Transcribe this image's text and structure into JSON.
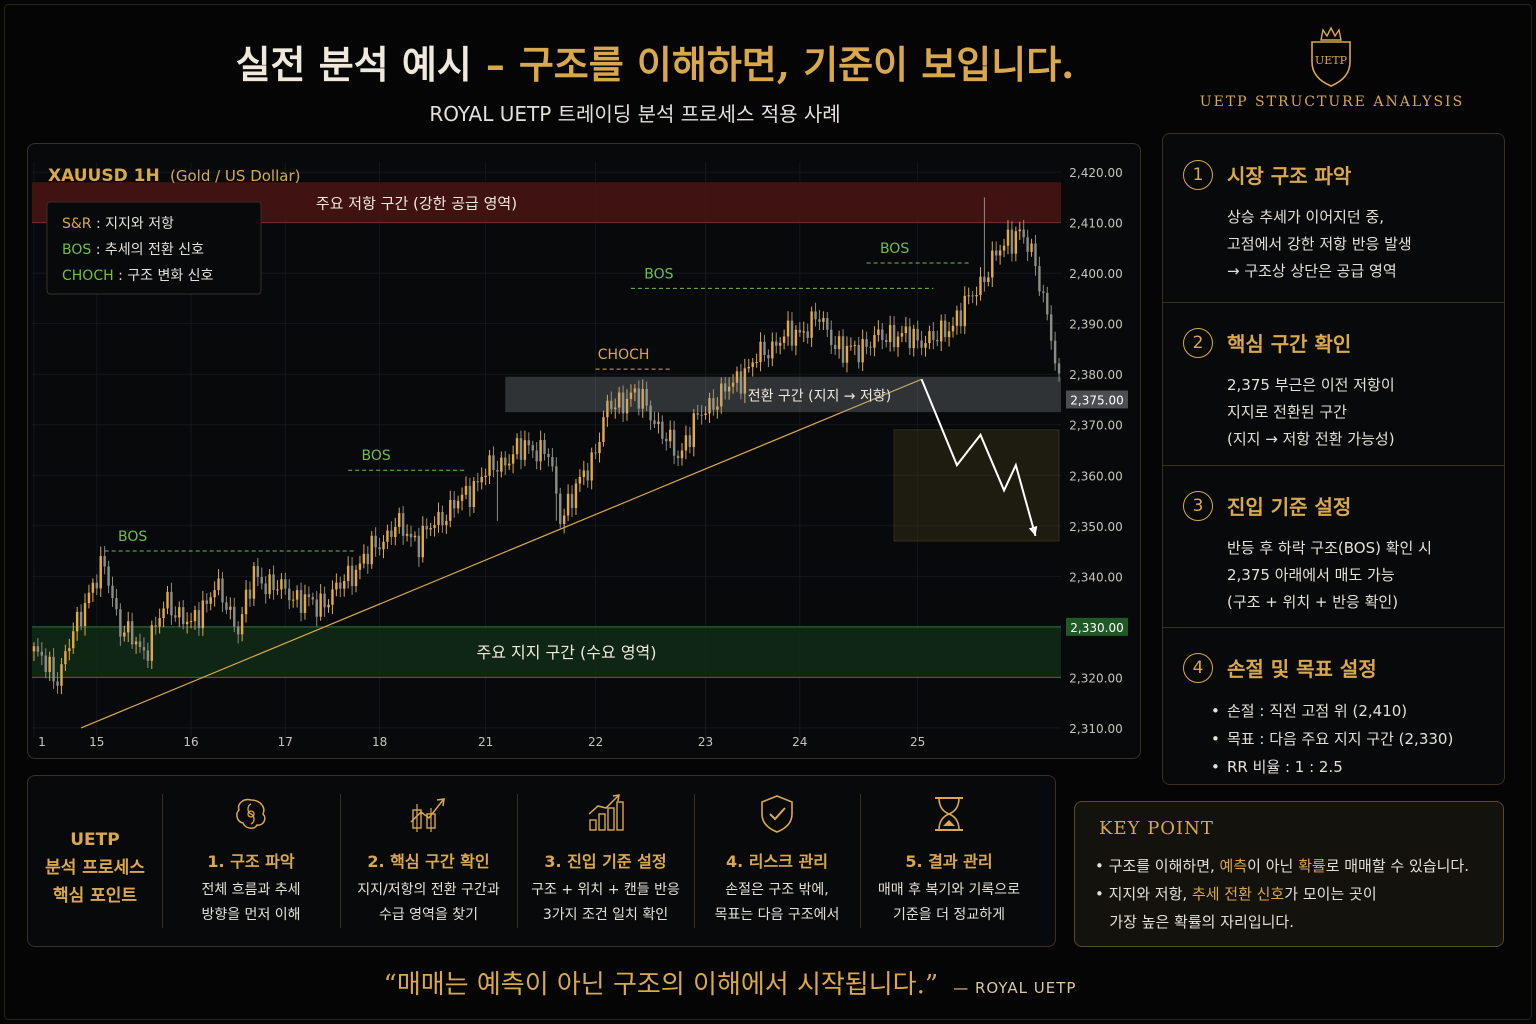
{
  "header": {
    "title_white": "실전 분석 예시",
    "title_dash": "–",
    "title_gold": "구조를 이해하면, 기준이 보입니다.",
    "subtitle": "ROYAL UETP 트레이딩 분석 프로세스 적용 사례",
    "logo_text": "UETP",
    "brand": "UETP STRUCTURE ANALYSIS"
  },
  "chart_data": {
    "type": "candlestick",
    "title": "XAUUSD 1H",
    "title_sub": "(Gold / US Dollar)",
    "legend": [
      {
        "key": "S&R",
        "desc": ": 지지와 저항"
      },
      {
        "key": "BOS",
        "desc": ": 추세의 전환 신호"
      },
      {
        "key": "CHOCH",
        "desc": ": 구조 변화 신호"
      }
    ],
    "ylim": [
      2308,
      2422
    ],
    "y_ticks": [
      "2,420.00",
      "2,410.00",
      "2,400.00",
      "2,390.00",
      "2,380.00",
      "2,370.00",
      "2,360.00",
      "2,350.00",
      "2,340.00",
      "2,330.00",
      "2,320.00",
      "2,310.00"
    ],
    "y_tick_values": [
      2420,
      2410,
      2400,
      2390,
      2380,
      2370,
      2360,
      2350,
      2340,
      2330,
      2320,
      2310
    ],
    "highlight_ticks": [
      {
        "label": "2,375.00",
        "value": 2375,
        "color": "#4a4d52"
      },
      {
        "label": "2,330.00",
        "value": 2330,
        "color": "#1f5a26"
      }
    ],
    "x_ticks": [
      "1",
      "15",
      "16",
      "17",
      "18",
      "21",
      "22",
      "23",
      "24",
      "25"
    ],
    "x_tick_index": [
      0,
      16,
      40,
      64,
      88,
      115,
      143,
      171,
      195,
      225
    ],
    "bar_count": 262,
    "price_path": [
      [
        0,
        2325
      ],
      [
        6,
        2320
      ],
      [
        14,
        2337
      ],
      [
        18,
        2342
      ],
      [
        22,
        2330
      ],
      [
        28,
        2325
      ],
      [
        34,
        2335
      ],
      [
        40,
        2330
      ],
      [
        46,
        2338
      ],
      [
        52,
        2330
      ],
      [
        56,
        2340
      ],
      [
        64,
        2337
      ],
      [
        72,
        2334
      ],
      [
        78,
        2338
      ],
      [
        80,
        2340
      ],
      [
        86,
        2345
      ],
      [
        92,
        2350
      ],
      [
        98,
        2347
      ],
      [
        104,
        2352
      ],
      [
        110,
        2356
      ],
      [
        114,
        2360
      ],
      [
        120,
        2363
      ],
      [
        126,
        2366
      ],
      [
        131,
        2364
      ],
      [
        134,
        2352
      ],
      [
        138,
        2357
      ],
      [
        142,
        2363
      ],
      [
        146,
        2373
      ],
      [
        152,
        2376
      ],
      [
        156,
        2374
      ],
      [
        160,
        2368
      ],
      [
        164,
        2364
      ],
      [
        168,
        2370
      ],
      [
        172,
        2374
      ],
      [
        178,
        2378
      ],
      [
        184,
        2383
      ],
      [
        190,
        2387
      ],
      [
        194,
        2388
      ],
      [
        200,
        2391
      ],
      [
        206,
        2384
      ],
      [
        212,
        2386
      ],
      [
        218,
        2388
      ],
      [
        224,
        2387
      ],
      [
        230,
        2387
      ],
      [
        236,
        2392
      ],
      [
        240,
        2397
      ],
      [
        244,
        2402
      ],
      [
        248,
        2407
      ],
      [
        251,
        2408
      ],
      [
        255,
        2402
      ],
      [
        258,
        2392
      ],
      [
        261,
        2377
      ]
    ],
    "wicks": [
      {
        "i": 118,
        "low": 2351
      },
      {
        "i": 133,
        "low": 2351
      },
      {
        "i": 242,
        "high": 2415
      },
      {
        "i": 18,
        "high": 2346
      }
    ],
    "zones": [
      {
        "label": "주요 저항 구간 (강한 공급 영역)",
        "from": 2410,
        "to": 2418,
        "type": "resistance"
      },
      {
        "label": "전환 구간 (지지 → 저항)",
        "from": 2372.5,
        "to": 2379.5,
        "type": "flip"
      },
      {
        "label": "주요 지지 구간 (수요 영역)",
        "from": 2320,
        "to": 2330,
        "type": "support"
      }
    ],
    "annotations": [
      {
        "label": "BOS",
        "level": 2345,
        "from": 18,
        "to": 82
      },
      {
        "label": "BOS",
        "level": 2361,
        "from": 80,
        "to": 110
      },
      {
        "label": "CHOCH",
        "level": 2381,
        "from": 143,
        "to": 162
      },
      {
        "label": "BOS",
        "level": 2397,
        "from": 152,
        "to": 229
      },
      {
        "label": "BOS",
        "level": 2402,
        "from": 212,
        "to": 238
      }
    ],
    "trendline": {
      "from": [
        12,
        2310
      ],
      "to": [
        226,
        2379
      ]
    },
    "projection": [
      [
        226,
        2379
      ],
      [
        235,
        2362
      ],
      [
        241,
        2368
      ],
      [
        247,
        2357
      ],
      [
        250,
        2362
      ],
      [
        255,
        2348
      ]
    ],
    "target_box": {
      "from_i": 219,
      "to_i": 261,
      "top": 2369,
      "bottom": 2347
    }
  },
  "steps": [
    {
      "num": "1",
      "title": "시장 구조 파악",
      "lines": [
        "상승 추세가 이어지던 중,",
        "고점에서 강한 저항 반응 발생",
        "→ 구조상 상단은 공급 영역"
      ]
    },
    {
      "num": "2",
      "title": "핵심 구간 확인",
      "lines": [
        "2,375 부근은 이전 저항이",
        "지지로 전환된 구간",
        "(지지 → 저항 전환 가능성)"
      ]
    },
    {
      "num": "3",
      "title": "진입 기준 설정",
      "lines": [
        "반등 후 하락 구조(BOS) 확인 시",
        "2,375 아래에서 매도 가능",
        "(구조 + 위치 + 반응 확인)"
      ]
    },
    {
      "num": "4",
      "title": "손절 및 목표 설정",
      "bullets": [
        "손절 : 직전 고점 위 (2,410)",
        "목표 : 다음 주요 지지 구간 (2,330)",
        "RR 비율 : 1 : 2.5"
      ]
    }
  ],
  "process": {
    "head": [
      "UETP",
      "분석 프로세스",
      "핵심 포인트"
    ],
    "items": [
      {
        "icon": "brain-icon",
        "title": "1. 구조 파악",
        "lines": [
          "전체 흐름과 추세",
          "방향을 먼저 이해"
        ]
      },
      {
        "icon": "chart-zone-icon",
        "title": "2. 핵심 구간 확인",
        "lines": [
          "지지/저항의 전환 구간과",
          "수급 영역을 찾기"
        ]
      },
      {
        "icon": "bar-growth-icon",
        "title": "3. 진입 기준 설정",
        "lines": [
          "구조 + 위치 + 캔들 반응",
          "3가지 조건 일치 확인"
        ]
      },
      {
        "icon": "shield-check-icon",
        "title": "4. 리스크 관리",
        "lines": [
          "손절은 구조 밖에,",
          "목표는 다음 구조에서"
        ]
      },
      {
        "icon": "hourglass-icon",
        "title": "5. 결과 관리",
        "lines": [
          "매매 후 복기와 기록으로",
          "기준을 더 정교하게"
        ]
      }
    ]
  },
  "keypoint": {
    "title": "KEY POINT",
    "l1_a": "구조를 이해하면, ",
    "l1_hl1": "예측",
    "l1_b": "이 아닌 ",
    "l1_hl2": "확률",
    "l1_c": "로 매매할 수 있습니다.",
    "l2_a": "지지와 저항, ",
    "l2_hl": "추세 전환 신호",
    "l2_b": "가 모이는 곳이",
    "l3": "가장 높은 확률의 자리입니다."
  },
  "quote": {
    "text": "“매매는 예측이 아닌 구조의 이해에서 시작됩니다.”",
    "author": "— ROYAL UETP"
  },
  "colors": {
    "gold": "#d9a84e",
    "up": "#e0a849",
    "down": "#8c8c86",
    "background": "#050505"
  }
}
